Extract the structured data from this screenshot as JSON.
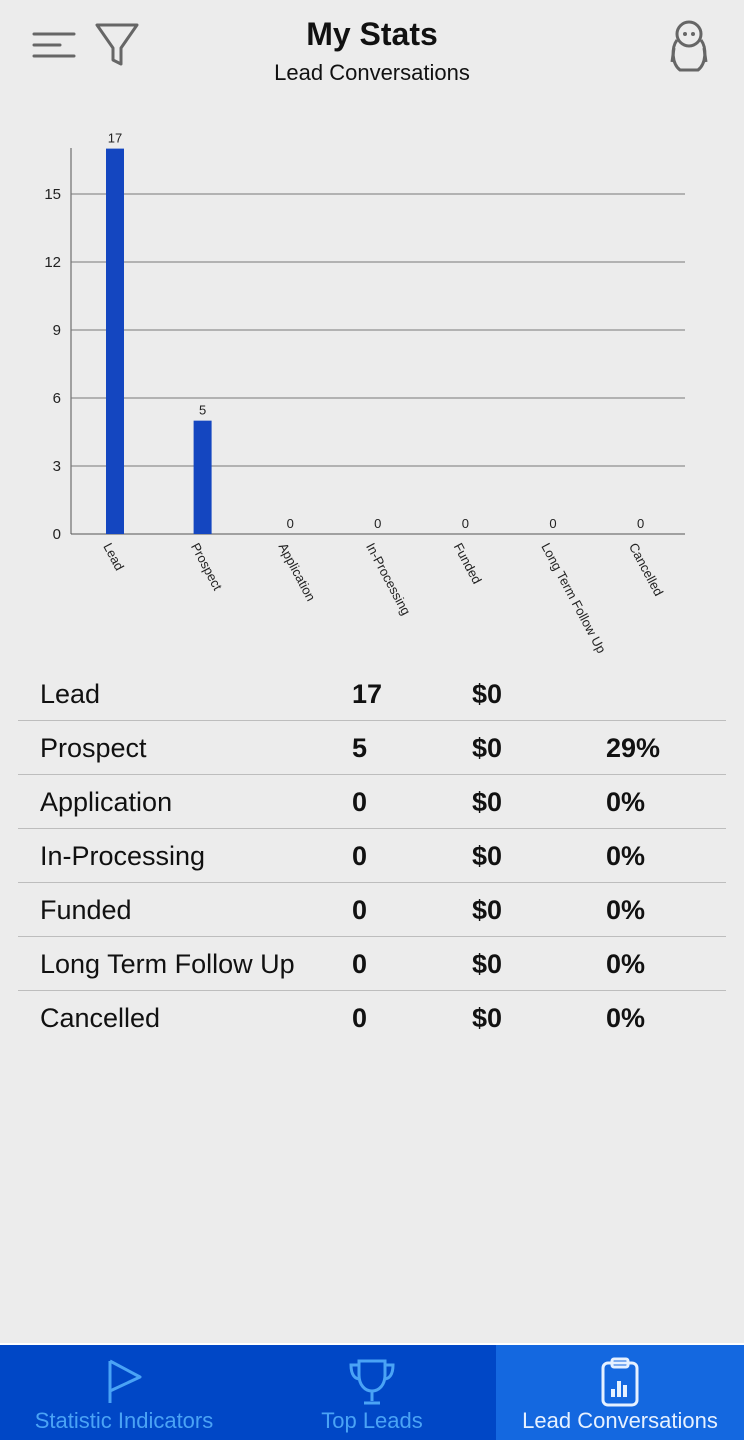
{
  "header": {
    "title": "My Stats",
    "subtitle": "Lead Conversations"
  },
  "chart_data": {
    "type": "bar",
    "categories": [
      "Lead",
      "Prospect",
      "Application",
      "In-Processing",
      "Funded",
      "Long Term Follow Up",
      "Cancelled"
    ],
    "values": [
      17,
      5,
      0,
      0,
      0,
      0,
      0
    ],
    "ylim": [
      0,
      17
    ],
    "yticks": [
      0,
      3,
      6,
      9,
      12,
      15
    ],
    "grid": true,
    "bar_color": "#1446c0",
    "data_labels": true
  },
  "table": [
    {
      "label": "Lead",
      "count": "17",
      "amount": "$0",
      "pct": ""
    },
    {
      "label": "Prospect",
      "count": "5",
      "amount": "$0",
      "pct": "29%"
    },
    {
      "label": "Application",
      "count": "0",
      "amount": "$0",
      "pct": "0%"
    },
    {
      "label": "In-Processing",
      "count": "0",
      "amount": "$0",
      "pct": "0%"
    },
    {
      "label": "Funded",
      "count": "0",
      "amount": "$0",
      "pct": "0%"
    },
    {
      "label": "Long Term Follow Up",
      "count": "0",
      "amount": "$0",
      "pct": "0%"
    },
    {
      "label": "Cancelled",
      "count": "0",
      "amount": "$0",
      "pct": "0%"
    }
  ],
  "nav": {
    "tabs": [
      {
        "label": "Statistic Indicators",
        "icon": "flag-icon"
      },
      {
        "label": "Top Leads",
        "icon": "trophy-icon"
      },
      {
        "label": "Lead Conversations",
        "icon": "clipboard-chart-icon",
        "active": true
      }
    ]
  }
}
